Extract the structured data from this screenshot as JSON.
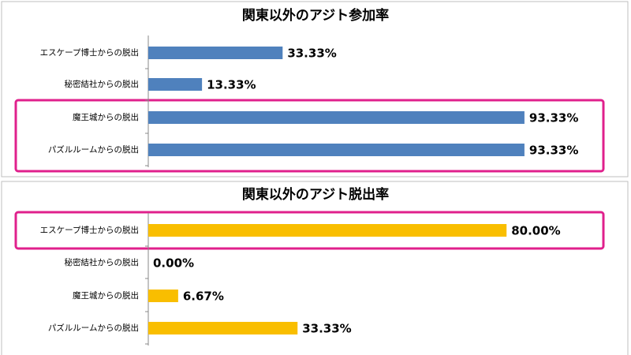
{
  "chart_data": [
    {
      "type": "barh",
      "title": "関東以外のアジト参加率",
      "categories": [
        "エスケープ博士からの脱出",
        "秘密結社からの脱出",
        "魔王城からの脱出",
        "パズルルームからの脱出"
      ],
      "values": [
        33.33,
        13.33,
        93.33,
        93.33
      ],
      "value_labels": [
        "33.33%",
        "13.33%",
        "93.33%",
        "93.33%"
      ],
      "color": "#4f81bd",
      "xlim": [
        0,
        100
      ]
    },
    {
      "type": "barh",
      "title": "関東以外のアジト脱出率",
      "categories": [
        "エスケープ博士からの脱出",
        "秘密結社からの脱出",
        "魔王城からの脱出",
        "パズルルームからの脱出"
      ],
      "values": [
        80.0,
        0.0,
        6.67,
        33.33
      ],
      "value_labels": [
        "80.00%",
        "0.00%",
        "6.67%",
        "33.33%"
      ],
      "color": "#f9be00",
      "xlim": [
        0,
        90
      ]
    }
  ]
}
